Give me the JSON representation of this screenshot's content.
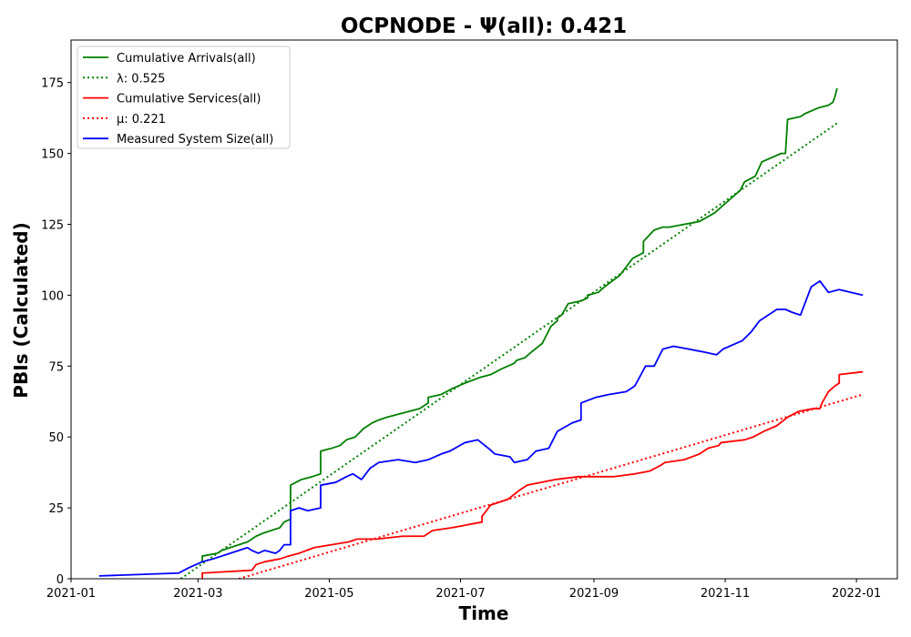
{
  "chart_data": {
    "type": "line",
    "title": "OCPNODE -  Ψ(all): 0.421",
    "xlabel": "Time",
    "ylabel": "PBIs (Calculated)",
    "x_type": "date",
    "xlim": [
      "2021-01-01",
      "2022-01-20"
    ],
    "ylim": [
      0,
      190
    ],
    "xticks": [
      "2021-01",
      "2021-03",
      "2021-05",
      "2021-07",
      "2021-09",
      "2021-11",
      "2022-01"
    ],
    "yticks": [
      0,
      25,
      50,
      75,
      100,
      125,
      150,
      175
    ],
    "grid": false,
    "legend_position": "upper left",
    "series": [
      {
        "name": "Cumulative Arrivals(all)",
        "color": "#008000",
        "style": "solid",
        "x": [
          "2021-03-03",
          "2021-03-03",
          "2021-03-10",
          "2021-03-12",
          "2021-03-16",
          "2021-03-20",
          "2021-03-24",
          "2021-03-28",
          "2021-03-31",
          "2021-04-04",
          "2021-04-08",
          "2021-04-10",
          "2021-04-13",
          "2021-04-13",
          "2021-04-18",
          "2021-04-23",
          "2021-04-27",
          "2021-04-27",
          "2021-05-02",
          "2021-05-06",
          "2021-05-09",
          "2021-05-13",
          "2021-05-17",
          "2021-05-21",
          "2021-05-24",
          "2021-05-28",
          "2021-06-07",
          "2021-06-12",
          "2021-06-16",
          "2021-06-16",
          "2021-06-22",
          "2021-06-22",
          "2021-06-27",
          "2021-07-03",
          "2021-07-10",
          "2021-07-15",
          "2021-07-20",
          "2021-07-26",
          "2021-07-27",
          "2021-07-31",
          "2021-08-03",
          "2021-08-08",
          "2021-08-12",
          "2021-08-15",
          "2021-08-15",
          "2021-08-17",
          "2021-08-20",
          "2021-08-26",
          "2021-08-29",
          "2021-08-29",
          "2021-09-03",
          "2021-09-06",
          "2021-09-13",
          "2021-09-19",
          "2021-09-24",
          "2021-09-24",
          "2021-09-29",
          "2021-10-03",
          "2021-10-06",
          "2021-10-13",
          "2021-10-20",
          "2021-10-27",
          "2021-10-30",
          "2021-11-05",
          "2021-11-08",
          "2021-11-10",
          "2021-11-15",
          "2021-11-18",
          "2021-11-27",
          "2021-11-29",
          "2021-11-30",
          "2021-12-06",
          "2021-12-08",
          "2021-12-11",
          "2021-12-14",
          "2021-12-19",
          "2021-12-21",
          "2021-12-22",
          "2021-12-23"
        ],
        "y": [
          6,
          8,
          9,
          10,
          11,
          12,
          13,
          15,
          16,
          17,
          18,
          20,
          21,
          33,
          35,
          36,
          37,
          45,
          46,
          47,
          49,
          50,
          53,
          55,
          56,
          57,
          59,
          60,
          62,
          64,
          65,
          65,
          67,
          69,
          71,
          72,
          74,
          76,
          77,
          78,
          80,
          83,
          89,
          91,
          92,
          93,
          97,
          98,
          99,
          100,
          101,
          103,
          107,
          113,
          115,
          119,
          123,
          124,
          124,
          125,
          126,
          129,
          131,
          135,
          137,
          140,
          142,
          147,
          150,
          150,
          162,
          163,
          164,
          165,
          166,
          167,
          168,
          170,
          173
        ]
      },
      {
        "name": "λ: 0.525",
        "color": "#008000",
        "style": "dotted",
        "x": [
          "2021-02-21",
          "2021-12-23"
        ],
        "y": [
          0,
          160.65
        ]
      },
      {
        "name": "Cumulative Services(all)",
        "color": "#ff0000",
        "style": "solid",
        "x": [
          "2021-03-03",
          "2021-03-03",
          "2021-03-26",
          "2021-03-26",
          "2021-03-28",
          "2021-04-01",
          "2021-04-08",
          "2021-04-12",
          "2021-04-17",
          "2021-04-24",
          "2021-05-02",
          "2021-05-10",
          "2021-05-14",
          "2021-05-23",
          "2021-06-04",
          "2021-06-14",
          "2021-06-18",
          "2021-06-27",
          "2021-07-04",
          "2021-07-11",
          "2021-07-11",
          "2021-07-15",
          "2021-07-23",
          "2021-07-28",
          "2021-07-30",
          "2021-08-01",
          "2021-08-14",
          "2021-08-25",
          "2021-09-10",
          "2021-09-20",
          "2021-09-27",
          "2021-10-02",
          "2021-10-04",
          "2021-10-13",
          "2021-10-20",
          "2021-10-24",
          "2021-10-29",
          "2021-10-30",
          "2021-11-10",
          "2021-11-14",
          "2021-11-19",
          "2021-11-25",
          "2021-11-30",
          "2021-12-05",
          "2021-12-12",
          "2021-12-15",
          "2021-12-16",
          "2021-12-19",
          "2021-12-22",
          "2021-12-24",
          "2021-12-24",
          "2022-01-04"
        ],
        "y": [
          0,
          2,
          3,
          3,
          5,
          6,
          7,
          8,
          9,
          11,
          12,
          13,
          14,
          14,
          15,
          15,
          17,
          18,
          19,
          20,
          22,
          26,
          28,
          31,
          32,
          33,
          35,
          36,
          36,
          37,
          38,
          40,
          41,
          42,
          44,
          46,
          47,
          48,
          49,
          50,
          52,
          54,
          57,
          59,
          60,
          60,
          62,
          66,
          68,
          69,
          72,
          73
        ]
      },
      {
        "name": "μ: 0.221",
        "color": "#ff0000",
        "style": "dotted",
        "x": [
          "2021-03-20",
          "2022-01-04"
        ],
        "y": [
          0,
          65
        ]
      },
      {
        "name": "Measured System Size(all)",
        "color": "#0000ff",
        "style": "solid",
        "x": [
          "2021-01-14",
          "2021-02-20",
          "2021-02-25",
          "2021-03-03",
          "2021-03-08",
          "2021-03-12",
          "2021-03-16",
          "2021-03-20",
          "2021-03-24",
          "2021-03-26",
          "2021-03-29",
          "2021-04-01",
          "2021-04-06",
          "2021-04-08",
          "2021-04-10",
          "2021-04-13",
          "2021-04-13",
          "2021-04-17",
          "2021-04-21",
          "2021-04-27",
          "2021-04-27",
          "2021-05-04",
          "2021-05-09",
          "2021-05-12",
          "2021-05-16",
          "2021-05-20",
          "2021-05-24",
          "2021-06-02",
          "2021-06-10",
          "2021-06-16",
          "2021-06-22",
          "2021-06-26",
          "2021-07-03",
          "2021-07-09",
          "2021-07-14",
          "2021-07-17",
          "2021-07-24",
          "2021-07-26",
          "2021-08-01",
          "2021-08-05",
          "2021-08-11",
          "2021-08-15",
          "2021-08-22",
          "2021-08-26",
          "2021-08-26",
          "2021-09-02",
          "2021-09-08",
          "2021-09-16",
          "2021-09-20",
          "2021-09-25",
          "2021-09-29",
          "2021-10-03",
          "2021-10-08",
          "2021-10-22",
          "2021-10-28",
          "2021-10-31",
          "2021-11-09",
          "2021-11-13",
          "2021-11-17",
          "2021-11-25",
          "2021-11-29",
          "2021-12-02",
          "2021-12-06",
          "2021-12-11",
          "2021-12-15",
          "2021-12-19",
          "2021-12-24",
          "2022-01-04"
        ],
        "y": [
          1,
          2,
          4,
          6,
          7,
          8,
          9,
          10,
          11,
          10,
          9,
          10,
          9,
          10,
          12,
          12,
          24,
          25,
          24,
          25,
          33,
          34,
          36,
          37,
          35,
          39,
          41,
          42,
          41,
          42,
          44,
          45,
          48,
          49,
          46,
          44,
          43,
          41,
          42,
          45,
          46,
          52,
          55,
          56,
          62,
          64,
          65,
          66,
          68,
          75,
          75,
          81,
          82,
          80,
          79,
          81,
          84,
          87,
          91,
          95,
          95,
          94,
          93,
          103,
          105,
          101,
          102,
          100
        ]
      }
    ]
  }
}
